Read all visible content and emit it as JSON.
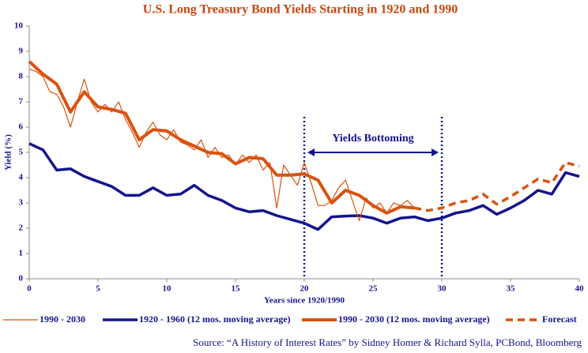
{
  "chart_data": {
    "type": "line",
    "title": "U.S. Long Treasury Bond Yields Starting in 1920 and 1990",
    "xlabel": "Years since 1920/1990",
    "ylabel": "Yield (%)",
    "source": "Source: “A History of Interest Rates” by Sidney Homer & Richard Sylla, PCBond, Bloomberg",
    "xlim": [
      0,
      40
    ],
    "ylim": [
      0,
      10
    ],
    "xticks": [
      0,
      5,
      10,
      15,
      20,
      25,
      30,
      35,
      40
    ],
    "yticks": [
      0,
      1,
      2,
      3,
      4,
      5,
      6,
      7,
      8,
      9,
      10
    ],
    "annotation": {
      "text": "Yields Bottoming",
      "x": [
        20,
        30
      ]
    },
    "series": [
      {
        "name": "1990 - 2030",
        "color": "#d9530f",
        "width": 1.2,
        "dash": false,
        "x": [
          0,
          0.5,
          1,
          1.5,
          2,
          2.5,
          3,
          3.5,
          4,
          4.5,
          5,
          5.5,
          6,
          6.5,
          7,
          7.5,
          8,
          8.5,
          9,
          9.5,
          10,
          10.5,
          11,
          11.5,
          12,
          12.5,
          13,
          13.5,
          14,
          14.5,
          15,
          15.5,
          16,
          16.5,
          17,
          17.5,
          18,
          18.5,
          19,
          19.5,
          20,
          20.5,
          21,
          21.5,
          22,
          22.5,
          23,
          23.5,
          24,
          24.5,
          25,
          25.5,
          26,
          26.5,
          27,
          27.5,
          28
        ],
        "values": [
          8.3,
          8.2,
          8.0,
          7.4,
          7.3,
          6.8,
          6.0,
          7.0,
          7.9,
          7.0,
          6.6,
          6.9,
          6.6,
          7.0,
          6.3,
          5.8,
          5.2,
          5.8,
          6.2,
          5.7,
          5.5,
          5.9,
          5.4,
          5.3,
          5.1,
          5.5,
          4.8,
          5.2,
          4.8,
          4.9,
          4.5,
          4.9,
          4.6,
          4.9,
          4.3,
          4.6,
          2.8,
          4.5,
          4.1,
          3.7,
          4.6,
          3.8,
          2.9,
          2.9,
          3.1,
          3.6,
          3.9,
          3.1,
          2.3,
          3.2,
          2.8,
          3.0,
          2.6,
          3.0,
          2.9,
          3.1,
          2.8
        ]
      },
      {
        "name": "1920 - 1960 (12 mos. moving average)",
        "color": "#14148c",
        "width": 3.5,
        "dash": false,
        "x": [
          0,
          1,
          2,
          3,
          4,
          5,
          6,
          7,
          8,
          9,
          10,
          11,
          12,
          13,
          14,
          15,
          16,
          17,
          18,
          19,
          20,
          21,
          22,
          23,
          24,
          25,
          26,
          27,
          28,
          29,
          30,
          31,
          32,
          33,
          34,
          35,
          36,
          37,
          38,
          39,
          40
        ],
        "values": [
          5.35,
          5.1,
          4.3,
          4.35,
          4.05,
          3.85,
          3.65,
          3.3,
          3.3,
          3.6,
          3.3,
          3.35,
          3.7,
          3.3,
          3.1,
          2.8,
          2.65,
          2.7,
          2.5,
          2.35,
          2.2,
          1.95,
          2.45,
          2.48,
          2.5,
          2.4,
          2.2,
          2.4,
          2.45,
          2.3,
          2.4,
          2.6,
          2.7,
          2.9,
          2.55,
          2.8,
          3.1,
          3.5,
          3.35,
          4.2,
          4.05
        ]
      },
      {
        "name": "1990 - 2030 (12 mos. moving average)",
        "color": "#d9530f",
        "width": 4,
        "dash": false,
        "x": [
          0,
          1,
          2,
          3,
          4,
          5,
          6,
          7,
          8,
          9,
          10,
          11,
          12,
          13,
          14,
          15,
          16,
          17,
          18,
          19,
          20,
          21,
          22,
          23,
          24,
          25,
          26,
          27,
          28
        ],
        "values": [
          8.6,
          8.1,
          7.7,
          6.6,
          7.4,
          6.8,
          6.7,
          6.55,
          5.5,
          5.9,
          5.85,
          5.5,
          5.25,
          5.0,
          4.95,
          4.55,
          4.8,
          4.75,
          4.1,
          4.1,
          4.15,
          3.9,
          3.0,
          3.5,
          3.3,
          2.9,
          2.6,
          2.85,
          2.8
        ]
      },
      {
        "name": "Forecast",
        "color": "#d9530f",
        "width": 3.5,
        "dash": true,
        "x": [
          28,
          29,
          30,
          31,
          32,
          33,
          34,
          35,
          36,
          37,
          38,
          39,
          40
        ],
        "values": [
          2.8,
          2.7,
          2.8,
          3.0,
          3.1,
          3.35,
          2.95,
          3.25,
          3.6,
          3.95,
          3.8,
          4.6,
          4.45
        ]
      }
    ]
  }
}
